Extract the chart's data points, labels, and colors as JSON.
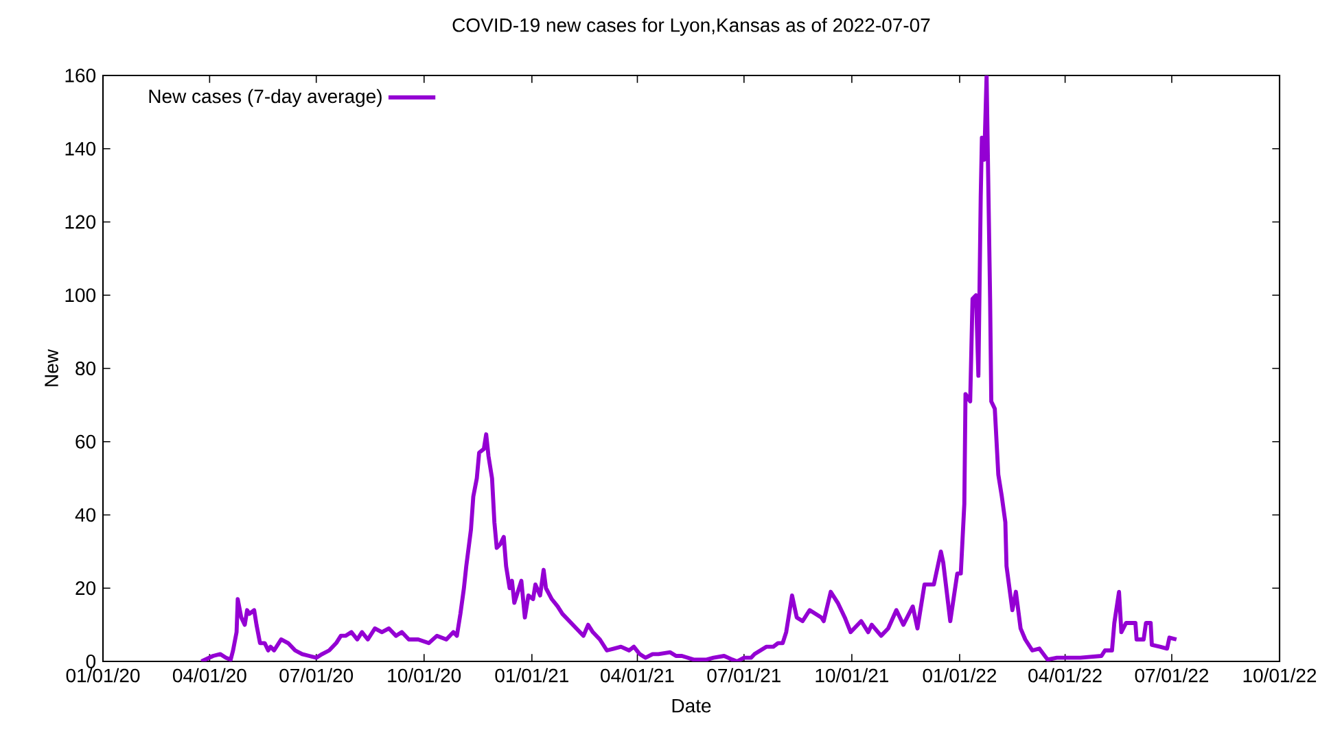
{
  "chart_data": {
    "type": "line",
    "title": "COVID-19 new cases for Lyon,Kansas as of 2022-07-07",
    "xlabel": "Date",
    "ylabel": "New",
    "legend": "top left",
    "grid": false,
    "line_style": "solid",
    "marker": "none",
    "xlim": [
      "2020-01-01",
      "2022-10-01"
    ],
    "ylim": [
      0,
      160
    ],
    "xticks": [
      {
        "value": "2020-01-01",
        "label": "01/01/20"
      },
      {
        "value": "2020-04-01",
        "label": "04/01/20"
      },
      {
        "value": "2020-07-01",
        "label": "07/01/20"
      },
      {
        "value": "2020-10-01",
        "label": "10/01/20"
      },
      {
        "value": "2021-01-01",
        "label": "01/01/21"
      },
      {
        "value": "2021-04-01",
        "label": "04/01/21"
      },
      {
        "value": "2021-07-01",
        "label": "07/01/21"
      },
      {
        "value": "2021-10-01",
        "label": "10/01/21"
      },
      {
        "value": "2022-01-01",
        "label": "01/01/22"
      },
      {
        "value": "2022-04-01",
        "label": "04/01/22"
      },
      {
        "value": "2022-07-01",
        "label": "07/01/22"
      },
      {
        "value": "2022-10-01",
        "label": "10/01/22"
      }
    ],
    "yticks": [
      0,
      20,
      40,
      60,
      80,
      100,
      120,
      140,
      160
    ],
    "series": [
      {
        "name": "New cases (7-day average)",
        "color": "#9400d3",
        "x": [
          "2020-03-25",
          "2020-04-04",
          "2020-04-10",
          "2020-04-15",
          "2020-04-19",
          "2020-04-21",
          "2020-04-24",
          "2020-04-25",
          "2020-04-28",
          "2020-05-01",
          "2020-05-03",
          "2020-05-05",
          "2020-05-09",
          "2020-05-11",
          "2020-05-14",
          "2020-05-18",
          "2020-05-21",
          "2020-05-23",
          "2020-05-26",
          "2020-06-01",
          "2020-06-07",
          "2020-06-13",
          "2020-06-19",
          "2020-06-25",
          "2020-07-01",
          "2020-07-06",
          "2020-07-12",
          "2020-07-18",
          "2020-07-22",
          "2020-07-26",
          "2020-07-31",
          "2020-08-05",
          "2020-08-09",
          "2020-08-14",
          "2020-08-20",
          "2020-08-26",
          "2020-09-01",
          "2020-09-07",
          "2020-09-12",
          "2020-09-18",
          "2020-09-26",
          "2020-10-05",
          "2020-10-12",
          "2020-10-20",
          "2020-10-26",
          "2020-10-29",
          "2020-11-01",
          "2020-11-04",
          "2020-11-06",
          "2020-11-10",
          "2020-11-12",
          "2020-11-15",
          "2020-11-17",
          "2020-11-21",
          "2020-11-23",
          "2020-11-25",
          "2020-11-28",
          "2020-11-30",
          "2020-12-02",
          "2020-12-05",
          "2020-12-08",
          "2020-12-10",
          "2020-12-13",
          "2020-12-15",
          "2020-12-17",
          "2020-12-23",
          "2020-12-26",
          "2020-12-29",
          "2021-01-02",
          "2021-01-04",
          "2021-01-08",
          "2021-01-11",
          "2021-01-13",
          "2021-01-18",
          "2021-01-23",
          "2021-01-27",
          "2021-02-02",
          "2021-02-08",
          "2021-02-14",
          "2021-02-18",
          "2021-02-22",
          "2021-02-28",
          "2021-03-06",
          "2021-03-12",
          "2021-03-18",
          "2021-03-25",
          "2021-03-29",
          "2021-04-03",
          "2021-04-08",
          "2021-04-14",
          "2021-04-19",
          "2021-04-29",
          "2021-05-04",
          "2021-05-09",
          "2021-05-19",
          "2021-05-25",
          "2021-05-30",
          "2021-06-05",
          "2021-06-14",
          "2021-06-21",
          "2021-06-25",
          "2021-07-01",
          "2021-07-07",
          "2021-07-10",
          "2021-07-15",
          "2021-07-20",
          "2021-07-26",
          "2021-07-30",
          "2021-08-03",
          "2021-08-06",
          "2021-08-11",
          "2021-08-15",
          "2021-08-20",
          "2021-08-26",
          "2021-09-05",
          "2021-09-07",
          "2021-09-13",
          "2021-09-19",
          "2021-09-25",
          "2021-09-30",
          "2021-10-09",
          "2021-10-15",
          "2021-10-18",
          "2021-10-26",
          "2021-11-01",
          "2021-11-08",
          "2021-11-14",
          "2021-11-22",
          "2021-11-26",
          "2021-12-02",
          "2021-12-10",
          "2021-12-16",
          "2021-12-18",
          "2021-12-24",
          "2021-12-30",
          "2022-01-02",
          "2022-01-05",
          "2022-01-06",
          "2022-01-10",
          "2022-01-12",
          "2022-01-15",
          "2022-01-17",
          "2022-01-19",
          "2022-01-20",
          "2022-01-22",
          "2022-01-24",
          "2022-01-27",
          "2022-01-28",
          "2022-01-31",
          "2022-02-03",
          "2022-02-06",
          "2022-02-09",
          "2022-02-10",
          "2022-02-15",
          "2022-02-18",
          "2022-02-22",
          "2022-02-26",
          "2022-03-04",
          "2022-03-10",
          "2022-03-17",
          "2022-03-25",
          "2022-04-14",
          "2022-05-02",
          "2022-05-05",
          "2022-05-11",
          "2022-05-13",
          "2022-05-17",
          "2022-05-19",
          "2022-05-23",
          "2022-05-31",
          "2022-06-01",
          "2022-06-07",
          "2022-06-09",
          "2022-06-13",
          "2022-06-14",
          "2022-06-21",
          "2022-06-27",
          "2022-06-29",
          "2022-07-05"
        ],
        "values": [
          0,
          1.5,
          2,
          1,
          0.5,
          3,
          8,
          17,
          12,
          10,
          14,
          13,
          14,
          10,
          5,
          5,
          3,
          4,
          3,
          6,
          5,
          3,
          2,
          1.5,
          1,
          2,
          3,
          5,
          7,
          7,
          8,
          6,
          8,
          6,
          9,
          8,
          9,
          7,
          8,
          6,
          6,
          5,
          7,
          6,
          8,
          7,
          13,
          20,
          26,
          36,
          45,
          50,
          57,
          58,
          62,
          56,
          50,
          38,
          31,
          32,
          34,
          26,
          20,
          22,
          16,
          22,
          12,
          18,
          17,
          21,
          18,
          25,
          20,
          17,
          15,
          13,
          11,
          9,
          7,
          10,
          8,
          6,
          3,
          3.5,
          4,
          3,
          4,
          2,
          1,
          2,
          2,
          2.5,
          1.5,
          1.5,
          0.5,
          0.5,
          0.5,
          1,
          1.5,
          0.5,
          0,
          1,
          1,
          2,
          3,
          4,
          4,
          5,
          5,
          8,
          18,
          12,
          11,
          14,
          12,
          11,
          19,
          16,
          12,
          8,
          11,
          8,
          10,
          7,
          9,
          14,
          10,
          15,
          9,
          21,
          21,
          30,
          27,
          11,
          24,
          24,
          43,
          73,
          71,
          99,
          100,
          78,
          127,
          143,
          137,
          160,
          99,
          71,
          69,
          51,
          45,
          38,
          26,
          14,
          19,
          9,
          6,
          3,
          3.5,
          0.5,
          1,
          1,
          1.5,
          3,
          3,
          10.5,
          19,
          8,
          10.5,
          10.5,
          6,
          6,
          10.5,
          10.5,
          4.5,
          4,
          3.5,
          6.5,
          6
        ]
      }
    ]
  }
}
